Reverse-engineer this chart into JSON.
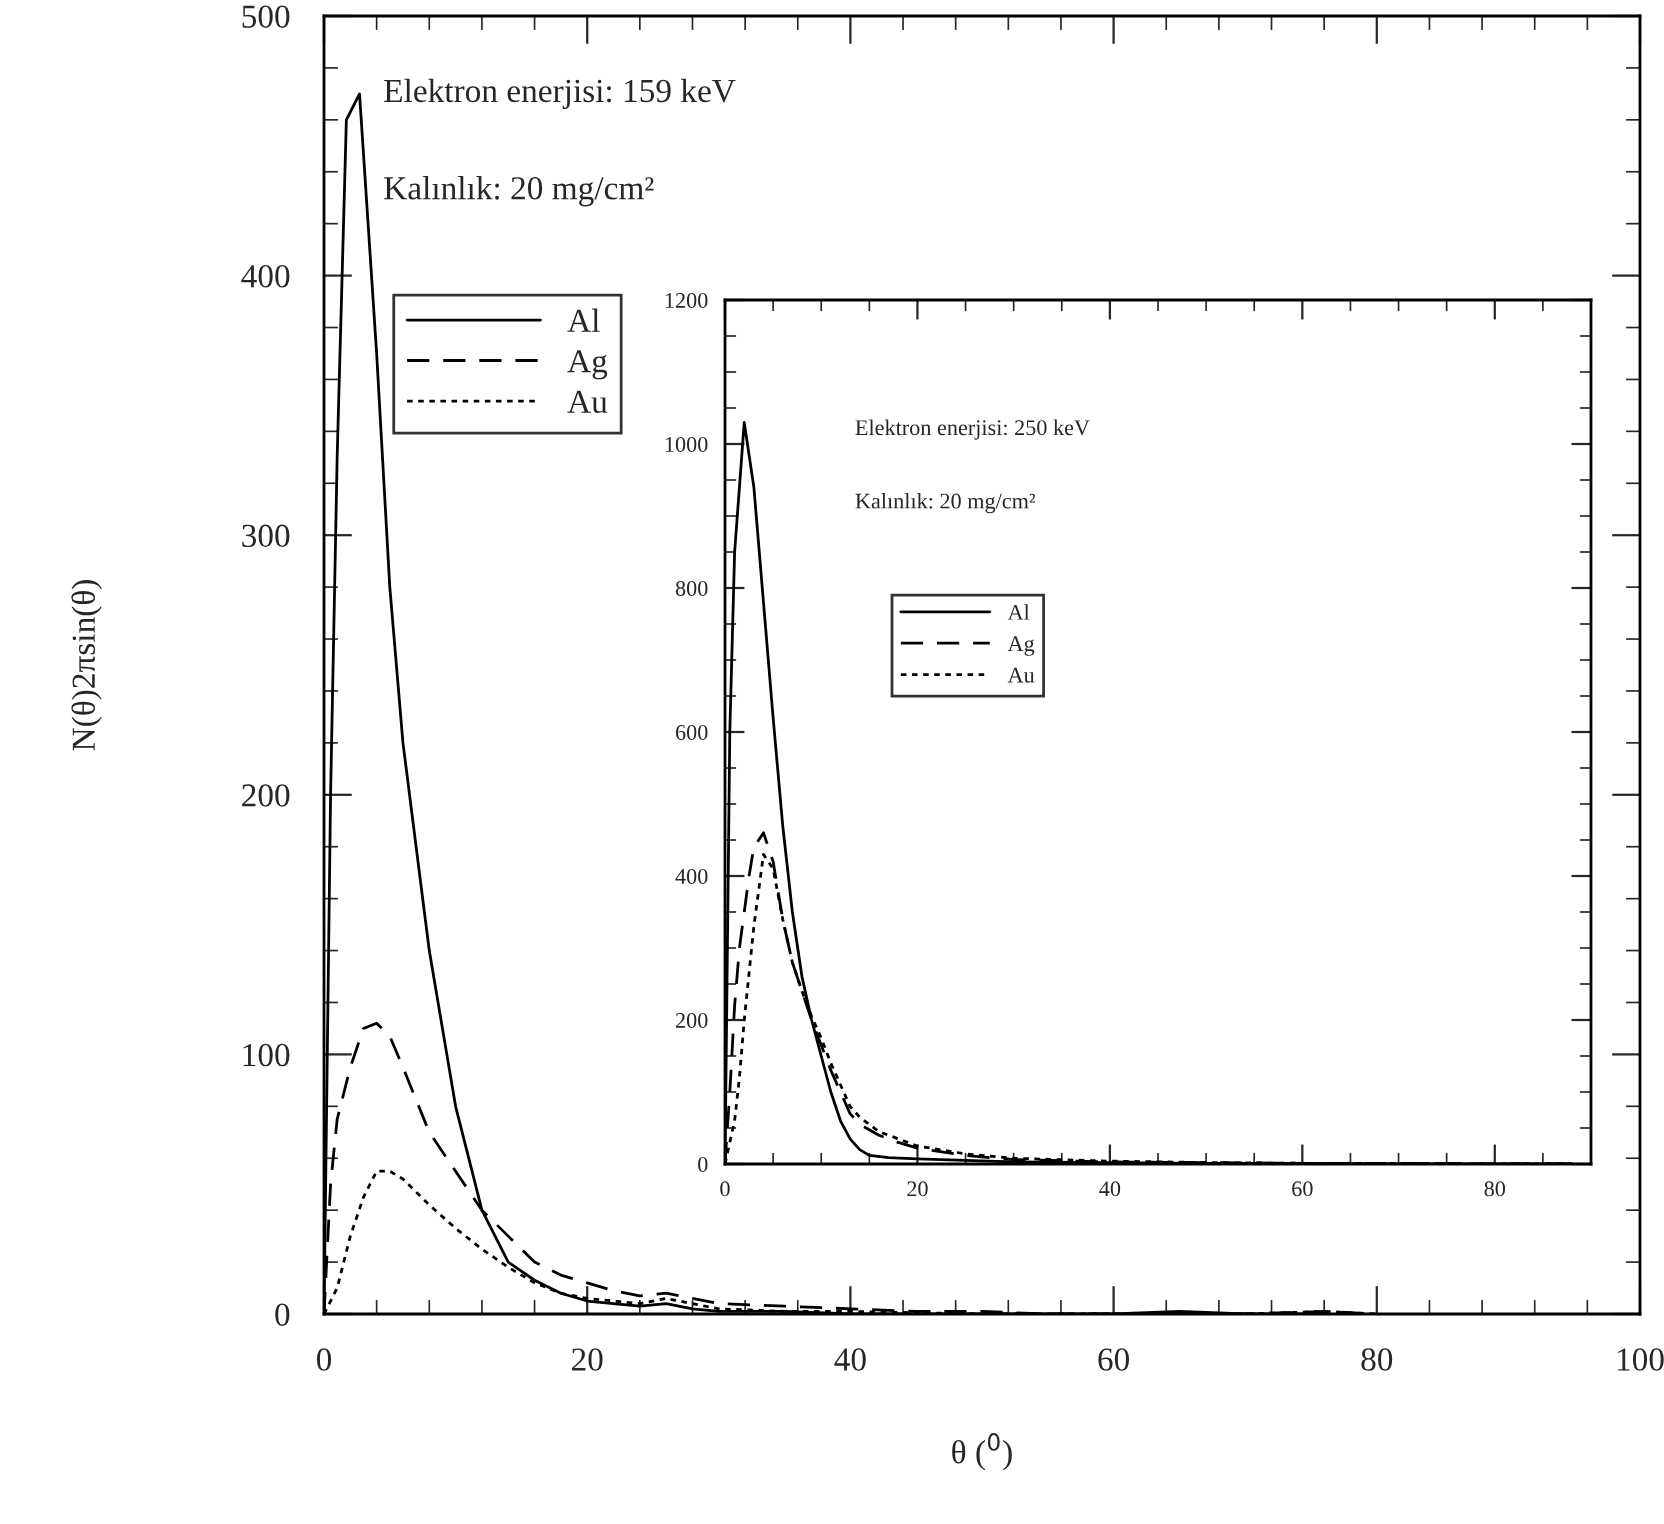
{
  "chart_data": [
    {
      "type": "line",
      "xlabel": "θ ($^{0}$)",
      "ylabel": "N(θ)2πsin(θ)",
      "xlim": [
        0,
        100
      ],
      "ylim": [
        0,
        500
      ],
      "xticks": [
        0,
        20,
        40,
        60,
        80,
        100
      ],
      "yticks": [
        0,
        100,
        200,
        300,
        400,
        500
      ],
      "grid": false,
      "legend": "top left",
      "marker": "none",
      "annotations": [
        "Elektron enerjisi: 159 keV",
        "Kalınlık: 20 mg/cm²"
      ],
      "series": [
        {
          "name": "Al",
          "color": "#000000",
          "line_style": "solid",
          "x": [
            0,
            0.5,
            1,
            1.7,
            2.7,
            4,
            5,
            6,
            8,
            10,
            12,
            14,
            16,
            18,
            20,
            22,
            24,
            26,
            28,
            30,
            35,
            40,
            50,
            60,
            65,
            70,
            75
          ],
          "values": [
            0,
            200,
            330,
            460,
            470,
            370,
            280,
            220,
            140,
            80,
            40,
            20,
            13,
            8,
            5,
            4,
            3,
            4,
            2,
            1,
            1,
            0,
            0,
            0,
            1,
            0,
            0
          ]
        },
        {
          "name": "Ag",
          "color": "#000000",
          "line_style": "dashed",
          "x": [
            0,
            0.5,
            1,
            2,
            3,
            4,
            5,
            6,
            8,
            10,
            12,
            14,
            16,
            18,
            20,
            22,
            24,
            26,
            28,
            30,
            35,
            40,
            45,
            50,
            55,
            60,
            70,
            76,
            80
          ],
          "values": [
            0,
            50,
            75,
            95,
            110,
            112,
            107,
            95,
            70,
            55,
            40,
            30,
            20,
            15,
            12,
            9,
            7,
            8,
            6,
            4,
            3,
            2,
            1,
            1,
            0,
            0,
            0,
            1,
            0
          ]
        },
        {
          "name": "Au",
          "color": "#000000",
          "line_style": "dotted",
          "x": [
            0,
            1,
            2,
            3,
            4,
            5,
            6,
            8,
            10,
            12,
            14,
            16,
            18,
            20,
            22,
            24,
            26,
            28,
            30,
            35,
            40,
            50,
            60,
            70,
            76,
            80
          ],
          "values": [
            0,
            10,
            30,
            45,
            55,
            55,
            52,
            42,
            33,
            25,
            18,
            12,
            8,
            6,
            5,
            4,
            6,
            4,
            2,
            1,
            1,
            0,
            0,
            0,
            1,
            0
          ]
        }
      ]
    },
    {
      "type": "line",
      "xlim": [
        0,
        90
      ],
      "ylim": [
        0,
        1200
      ],
      "xticks": [
        0,
        20,
        40,
        60,
        80
      ],
      "yticks": [
        0,
        200,
        400,
        600,
        800,
        1000,
        1200
      ],
      "grid": false,
      "legend": "left",
      "marker": "none",
      "annotations": [
        "Elektron enerjisi: 250 keV",
        "Kalınlık: 20 mg/cm²"
      ],
      "series": [
        {
          "name": "Al",
          "color": "#000000",
          "line_style": "solid",
          "x": [
            0,
            0.5,
            1,
            2,
            3,
            4,
            5,
            6,
            7,
            8,
            9,
            10,
            11,
            12,
            13,
            14,
            15,
            17,
            20,
            25,
            30,
            40,
            50,
            60,
            70,
            80,
            88
          ],
          "values": [
            0,
            600,
            850,
            1030,
            940,
            780,
            620,
            470,
            350,
            260,
            200,
            150,
            100,
            60,
            35,
            20,
            12,
            9,
            7,
            5,
            3,
            2,
            1,
            1,
            0,
            0,
            0
          ]
        },
        {
          "name": "Ag",
          "color": "#000000",
          "line_style": "dashed",
          "x": [
            0,
            0.5,
            1,
            1.5,
            2,
            2.5,
            3,
            4,
            5,
            6,
            7,
            8,
            9,
            10,
            11,
            12,
            13,
            14,
            16,
            18,
            20,
            25,
            30,
            40,
            50,
            60,
            70,
            80,
            88
          ],
          "values": [
            0,
            100,
            220,
            300,
            350,
            400,
            440,
            460,
            420,
            340,
            280,
            240,
            200,
            165,
            130,
            100,
            70,
            55,
            40,
            30,
            22,
            12,
            6,
            3,
            2,
            1,
            1,
            0,
            0
          ]
        },
        {
          "name": "Au",
          "color": "#000000",
          "line_style": "dotted",
          "x": [
            0,
            0.5,
            1,
            1.5,
            2,
            3,
            4,
            5,
            6,
            7,
            8,
            9,
            10,
            11,
            12,
            13,
            14,
            16,
            18,
            20,
            25,
            30,
            40,
            50,
            60,
            70,
            80,
            88
          ],
          "values": [
            0,
            30,
            60,
            120,
            200,
            330,
            430,
            410,
            340,
            280,
            240,
            205,
            175,
            140,
            110,
            80,
            65,
            45,
            35,
            25,
            14,
            8,
            4,
            2,
            1,
            1,
            0,
            0
          ]
        }
      ]
    }
  ]
}
